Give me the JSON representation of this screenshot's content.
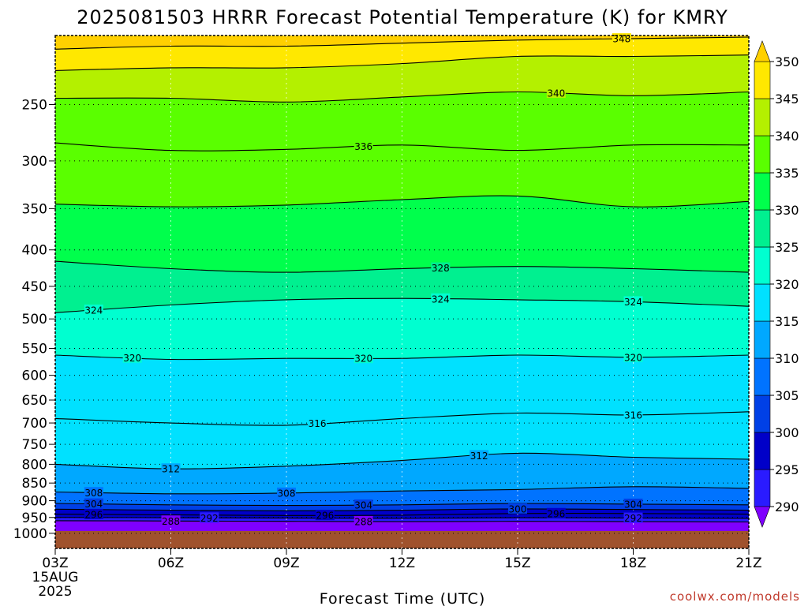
{
  "chart_data": {
    "type": "filled-contour",
    "title": "2025081503 HRRR Forecast Potential Temperature (K) for KMRY",
    "xlabel": "Forecast Time (UTC)",
    "x_ticks": [
      "03Z",
      "06Z",
      "09Z",
      "12Z",
      "15Z",
      "18Z",
      "21Z"
    ],
    "x_hours": [
      3,
      6,
      9,
      12,
      15,
      18,
      21
    ],
    "x_start_date": [
      "15AUG",
      "2025"
    ],
    "y_ticks": [
      250,
      300,
      350,
      400,
      450,
      500,
      550,
      600,
      650,
      700,
      750,
      800,
      850,
      900,
      950,
      1000
    ],
    "y_axis": "pressure (hPa), inverted, log scale",
    "y_range": [
      1050,
      200
    ],
    "colorbar": {
      "levels": [
        290,
        295,
        300,
        305,
        310,
        315,
        320,
        325,
        330,
        335,
        340,
        345,
        350
      ],
      "colors": [
        "#7f00ff",
        "#2a1bff",
        "#0000c8",
        "#0040e6",
        "#0073ff",
        "#00a8ff",
        "#00e1ff",
        "#00ffd0",
        "#00f090",
        "#00ff4c",
        "#5aff00",
        "#b4f000",
        "#ffe800",
        "#ffd000"
      ]
    },
    "contour_interval": 2,
    "isentropes_hpa": {
      "hours": [
        3,
        6,
        9,
        12,
        15,
        18,
        21
      ],
      "288": [
        960,
        961,
        962,
        963,
        962,
        963,
        964
      ],
      "292": [
        950,
        951,
        952,
        953,
        951,
        952,
        953
      ],
      "296": [
        940,
        942,
        944,
        943,
        938,
        938,
        940
      ],
      "300": [
        925,
        928,
        930,
        928,
        924,
        926,
        928
      ],
      "304": [
        908,
        912,
        914,
        912,
        908,
        910,
        912
      ],
      "308": [
        875,
        880,
        878,
        872,
        868,
        860,
        865
      ],
      "312": [
        800,
        812,
        805,
        790,
        772,
        782,
        787
      ],
      "316": [
        690,
        700,
        705,
        690,
        678,
        682,
        675
      ],
      "320": [
        562,
        570,
        568,
        568,
        562,
        566,
        562
      ],
      "324": [
        490,
        478,
        470,
        468,
        470,
        473,
        480
      ],
      "328": [
        415,
        425,
        430,
        425,
        422,
        425,
        430
      ],
      "332": [
        345,
        348,
        346,
        340,
        336,
        348,
        342
      ],
      "336": [
        283,
        290,
        289,
        285,
        290,
        285,
        285
      ],
      "340": [
        245,
        245,
        248,
        244,
        240,
        243,
        240
      ],
      "344": [
        224,
        222,
        222,
        219,
        214,
        214,
        213
      ],
      "348": [
        209,
        207,
        207,
        205,
        203,
        202,
        201
      ]
    },
    "contour_labels": [
      {
        "level": 348,
        "hour": 17.7,
        "text": "348"
      },
      {
        "level": 340,
        "hour": 16.0,
        "text": "340"
      },
      {
        "level": 336,
        "hour": 11.0,
        "text": "336"
      },
      {
        "level": 328,
        "hour": 13.0,
        "text": "328"
      },
      {
        "level": 324,
        "hour": 4.0,
        "text": "324"
      },
      {
        "level": 324,
        "hour": 13.0,
        "text": "324"
      },
      {
        "level": 324,
        "hour": 18.0,
        "text": "324"
      },
      {
        "level": 320,
        "hour": 5.0,
        "text": "320"
      },
      {
        "level": 320,
        "hour": 11.0,
        "text": "320"
      },
      {
        "level": 320,
        "hour": 18.0,
        "text": "320"
      },
      {
        "level": 316,
        "hour": 9.8,
        "text": "316"
      },
      {
        "level": 316,
        "hour": 18.0,
        "text": "316"
      },
      {
        "level": 312,
        "hour": 6.0,
        "text": "312"
      },
      {
        "level": 312,
        "hour": 14.0,
        "text": "312"
      },
      {
        "level": 308,
        "hour": 4.0,
        "text": "308"
      },
      {
        "level": 308,
        "hour": 9.0,
        "text": "308"
      },
      {
        "level": 304,
        "hour": 4.0,
        "text": "304"
      },
      {
        "level": 304,
        "hour": 11.0,
        "text": "304"
      },
      {
        "level": 304,
        "hour": 18.0,
        "text": "304"
      },
      {
        "level": 300,
        "hour": 15.0,
        "text": "300"
      },
      {
        "level": 296,
        "hour": 4.0,
        "text": "296"
      },
      {
        "level": 296,
        "hour": 10.0,
        "text": "296"
      },
      {
        "level": 296,
        "hour": 16.0,
        "text": "296"
      },
      {
        "level": 292,
        "hour": 7.0,
        "text": "292"
      },
      {
        "level": 292,
        "hour": 18.0,
        "text": "292"
      },
      {
        "level": 288,
        "hour": 6.0,
        "text": "288"
      },
      {
        "level": 288,
        "hour": 11.0,
        "text": "288"
      }
    ],
    "ground_color": "#a0522d",
    "grid": "dotted"
  },
  "credit": "coolwx.com/models"
}
